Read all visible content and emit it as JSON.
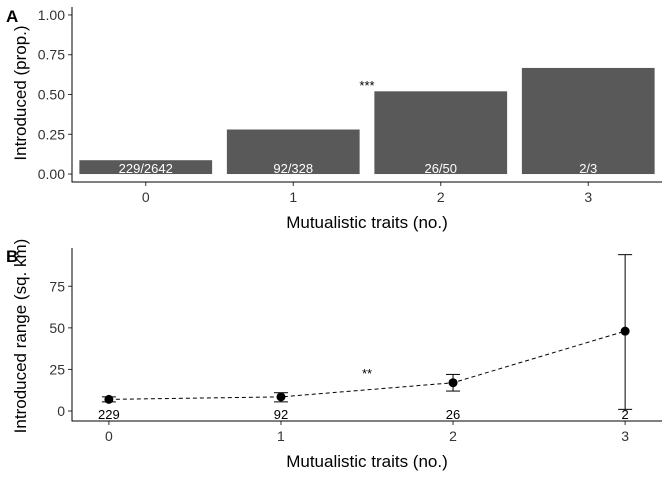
{
  "chart_data": [
    {
      "panel": "A",
      "type": "bar",
      "categories": [
        "0",
        "1",
        "2",
        "3"
      ],
      "values": [
        0.087,
        0.28,
        0.52,
        0.667
      ],
      "bar_labels": [
        "229/2642",
        "92/328",
        "26/50",
        "2/3"
      ],
      "xlabel": "Mutualistic traits (no.)",
      "ylabel": "Introduced (prop.)",
      "ylim": [
        -0.05,
        1.05
      ],
      "yticks": [
        "0.00",
        "0.25",
        "0.50",
        "0.75",
        "1.00"
      ],
      "ytick_values": [
        0,
        0.25,
        0.5,
        0.75,
        1.0
      ],
      "annotation": {
        "text": "***",
        "x": 1.5,
        "y": 0.56
      },
      "bar_color": "#595959",
      "grid": false
    },
    {
      "panel": "B",
      "type": "line",
      "x": [
        "0",
        "1",
        "2",
        "3"
      ],
      "values": [
        7,
        8.5,
        17,
        48
      ],
      "err_low": [
        5.5,
        5.5,
        12,
        1
      ],
      "err_high": [
        8.5,
        11,
        22,
        94
      ],
      "point_labels": [
        "229",
        "92",
        "26",
        "2"
      ],
      "xlabel": "Mutualistic traits (no.)",
      "ylabel": "Introduced range (sq. km)",
      "ylim": [
        -6,
        98
      ],
      "yticks": [
        "0",
        "25",
        "50",
        "75"
      ],
      "ytick_values": [
        0,
        25,
        50,
        75
      ],
      "annotation": {
        "text": "**",
        "x": 1.5,
        "y": 23
      },
      "line_style": "dashed",
      "grid": false
    }
  ]
}
